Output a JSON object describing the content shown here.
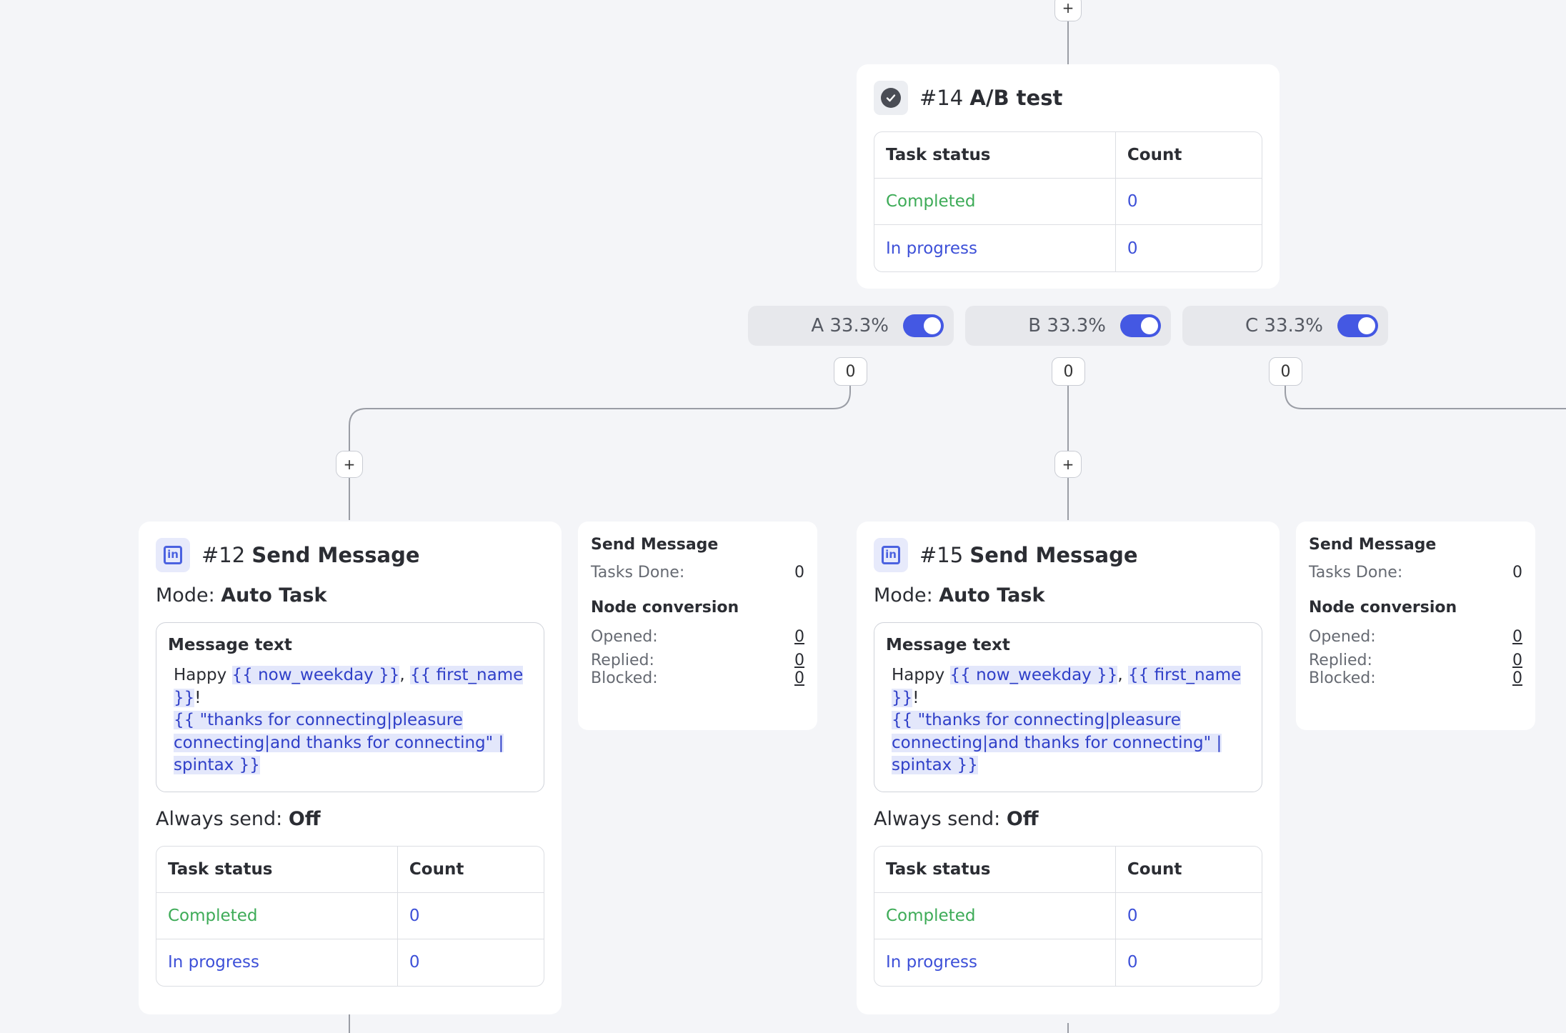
{
  "ab_node": {
    "number": "#14",
    "name": "A/B test",
    "status_table": {
      "headers": [
        "Task status",
        "Count"
      ],
      "rows": [
        {
          "status": "Completed",
          "count": "0"
        },
        {
          "status": "In progress",
          "count": "0"
        }
      ]
    }
  },
  "plus_label": "+",
  "variants": [
    {
      "label": "A 33.3%",
      "enabled": true,
      "count": "0"
    },
    {
      "label": "B 33.3%",
      "enabled": true,
      "count": "0"
    },
    {
      "label": "C 33.3%",
      "enabled": true,
      "count": "0"
    }
  ],
  "message_nodes": [
    {
      "number": "#12",
      "name": "Send Message",
      "mode_label": "Mode:",
      "mode_value": "Auto Task",
      "message_label": "Message text",
      "message": {
        "prefix": "Happy ",
        "var_weekday": "{{ now_weekday }}",
        "sep": ", ",
        "var_first_name": "{{ first_name }}",
        "excl": "!",
        "spintax": "{{ \"thanks for connecting|pleasure connecting|and thanks for connecting\" | spintax }}"
      },
      "always_send_label": "Always send:",
      "always_send_value": "Off",
      "status_table": {
        "headers": [
          "Task status",
          "Count"
        ],
        "rows": [
          {
            "status": "Completed",
            "count": "0"
          },
          {
            "status": "In progress",
            "count": "0"
          }
        ]
      },
      "stats": {
        "title": "Send Message",
        "tasks_done_label": "Tasks Done:",
        "tasks_done_value": "0",
        "conversion_title": "Node conversion",
        "opened_label": "Opened:",
        "opened_value": "0",
        "replied_label": "Replied:",
        "replied_value": "0",
        "blocked_label": "Blocked:",
        "blocked_value": "0"
      }
    },
    {
      "number": "#15",
      "name": "Send Message",
      "mode_label": "Mode:",
      "mode_value": "Auto Task",
      "message_label": "Message text",
      "message": {
        "prefix": "Happy ",
        "var_weekday": "{{ now_weekday }}",
        "sep": ", ",
        "var_first_name": "{{ first_name }}",
        "excl": "!",
        "spintax": "{{ \"thanks for connecting|pleasure connecting|and thanks for connecting\" | spintax }}"
      },
      "always_send_label": "Always send:",
      "always_send_value": "Off",
      "status_table": {
        "headers": [
          "Task status",
          "Count"
        ],
        "rows": [
          {
            "status": "Completed",
            "count": "0"
          },
          {
            "status": "In progress",
            "count": "0"
          }
        ]
      },
      "stats": {
        "title": "Send Message",
        "tasks_done_label": "Tasks Done:",
        "tasks_done_value": "0",
        "conversion_title": "Node conversion",
        "opened_label": "Opened:",
        "opened_value": "0",
        "replied_label": "Replied:",
        "replied_value": "0",
        "blocked_label": "Blocked:",
        "blocked_value": "0"
      }
    }
  ],
  "colors": {
    "accent": "#4458e3",
    "completed": "#3dab57",
    "in_progress": "#3d50d8",
    "canvas_bg": "#f4f5f8"
  }
}
